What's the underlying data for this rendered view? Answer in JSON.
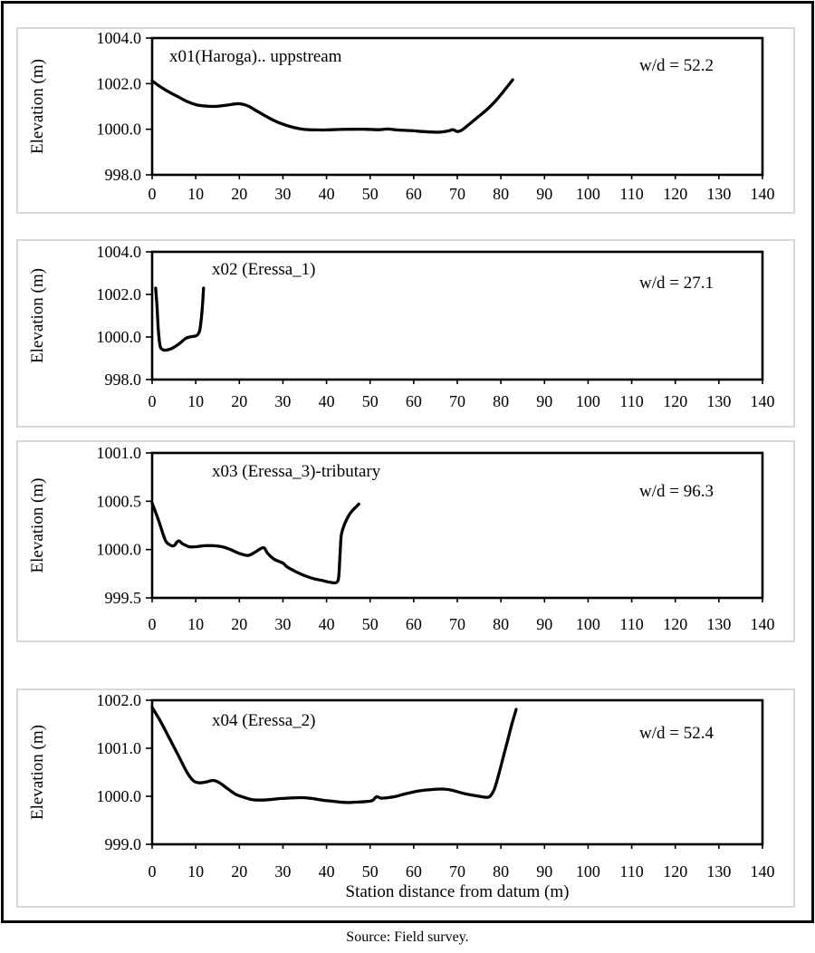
{
  "figure": {
    "caption": "Source: Field survey.",
    "bg_color": "#ffffff",
    "frame_color": "#000000",
    "panel_border_color": "#d8d8d8",
    "line_color": "#000000",
    "text_color": "#000000"
  },
  "chart_data": [
    {
      "type": "line",
      "title": "x01(Haroga).. uppstream",
      "annotation": "w/d = 52.2",
      "ylabel": "Elevation (m)",
      "xlabel": "",
      "ylim": [
        998.0,
        1004.0
      ],
      "y_tick_labels": [
        "998.0",
        "1000.0",
        "1002.0",
        "1004.0"
      ],
      "xlim": [
        0,
        140
      ],
      "x_tick_labels": [
        "0",
        "10",
        "20",
        "30",
        "40",
        "50",
        "60",
        "70",
        "80",
        "90",
        "100",
        "110",
        "120",
        "130",
        "140"
      ],
      "grid": false,
      "points": [
        [
          0,
          1002.12
        ],
        [
          2,
          1001.85
        ],
        [
          4,
          1001.62
        ],
        [
          6,
          1001.42
        ],
        [
          8,
          1001.22
        ],
        [
          10,
          1001.08
        ],
        [
          12,
          1001.02
        ],
        [
          14,
          1001.0
        ],
        [
          16,
          1001.03
        ],
        [
          18,
          1001.08
        ],
        [
          20,
          1001.12
        ],
        [
          22,
          1001.02
        ],
        [
          24,
          1000.8
        ],
        [
          26,
          1000.58
        ],
        [
          28,
          1000.38
        ],
        [
          30,
          1000.22
        ],
        [
          32,
          1000.1
        ],
        [
          34,
          1000.02
        ],
        [
          36,
          999.98
        ],
        [
          38,
          999.97
        ],
        [
          40,
          999.97
        ],
        [
          43,
          999.99
        ],
        [
          46,
          1000.0
        ],
        [
          49,
          1000.0
        ],
        [
          52,
          999.98
        ],
        [
          54,
          1000.01
        ],
        [
          56,
          999.97
        ],
        [
          58,
          999.95
        ],
        [
          60,
          999.93
        ],
        [
          62,
          999.9
        ],
        [
          64,
          999.88
        ],
        [
          66,
          999.87
        ],
        [
          68,
          999.93
        ],
        [
          69,
          999.98
        ],
        [
          70,
          999.9
        ],
        [
          71,
          999.96
        ],
        [
          72.5,
          1000.18
        ],
        [
          74.5,
          1000.5
        ],
        [
          77,
          1000.9
        ],
        [
          79.5,
          1001.4
        ],
        [
          82.7,
          1002.17
        ]
      ]
    },
    {
      "type": "line",
      "title": "x02 (Eressa_1)",
      "annotation": "w/d = 27.1",
      "ylabel": "Elevation (m)",
      "xlabel": "",
      "ylim": [
        998.0,
        1004.0
      ],
      "y_tick_labels": [
        "998.0",
        "1000.0",
        "1002.0",
        "1004.0"
      ],
      "xlim": [
        0,
        140
      ],
      "x_tick_labels": [
        "0",
        "10",
        "20",
        "30",
        "40",
        "50",
        "60",
        "70",
        "80",
        "90",
        "100",
        "110",
        "120",
        "130",
        "140"
      ],
      "grid": false,
      "points": [
        [
          0.8,
          1002.3
        ],
        [
          1.1,
          1001.5
        ],
        [
          1.4,
          1000.4
        ],
        [
          1.8,
          999.6
        ],
        [
          2.3,
          999.42
        ],
        [
          3,
          999.38
        ],
        [
          4,
          999.42
        ],
        [
          5,
          999.52
        ],
        [
          6,
          999.65
        ],
        [
          7,
          999.82
        ],
        [
          7.8,
          999.95
        ],
        [
          8.6,
          1000.0
        ],
        [
          9.5,
          1000.03
        ],
        [
          10.3,
          1000.08
        ],
        [
          10.9,
          1000.3
        ],
        [
          11.3,
          1000.9
        ],
        [
          11.6,
          1001.6
        ],
        [
          11.8,
          1002.3
        ]
      ]
    },
    {
      "type": "line",
      "title": "x03 (Eressa_3)-tributary",
      "annotation": "w/d = 96.3",
      "ylabel": "Elevation (m)",
      "xlabel": "",
      "ylim": [
        999.5,
        1001.0
      ],
      "y_tick_labels": [
        "999.5",
        "1000.0",
        "1000.5",
        "1001.0"
      ],
      "xlim": [
        0,
        140
      ],
      "x_tick_labels": [
        "0",
        "10",
        "20",
        "30",
        "40",
        "50",
        "60",
        "70",
        "80",
        "90",
        "100",
        "110",
        "120",
        "130",
        "140"
      ],
      "grid": false,
      "points": [
        [
          0,
          1000.48
        ],
        [
          1.5,
          1000.3
        ],
        [
          3,
          1000.1
        ],
        [
          4,
          1000.05
        ],
        [
          5,
          1000.04
        ],
        [
          6,
          1000.09
        ],
        [
          7,
          1000.06
        ],
        [
          8.5,
          1000.03
        ],
        [
          10,
          1000.03
        ],
        [
          12,
          1000.04
        ],
        [
          14,
          1000.04
        ],
        [
          16,
          1000.03
        ],
        [
          18,
          1000.0
        ],
        [
          20,
          999.96
        ],
        [
          22,
          999.94
        ],
        [
          23.5,
          999.97
        ],
        [
          25.5,
          1000.02
        ],
        [
          26.5,
          999.96
        ],
        [
          28,
          999.9
        ],
        [
          30,
          999.86
        ],
        [
          31,
          999.82
        ],
        [
          33,
          999.77
        ],
        [
          35,
          999.73
        ],
        [
          37,
          999.7
        ],
        [
          39,
          999.68
        ],
        [
          41,
          999.66
        ],
        [
          42.3,
          999.66
        ],
        [
          42.8,
          999.72
        ],
        [
          43.1,
          999.95
        ],
        [
          43.4,
          1000.15
        ],
        [
          44.2,
          1000.27
        ],
        [
          45.5,
          1000.38
        ],
        [
          47.4,
          1000.47
        ]
      ]
    },
    {
      "type": "line",
      "title": "x04 (Eressa_2)",
      "annotation": "w/d = 52.4",
      "ylabel": "Elevation (m)",
      "xlabel": "Station distance from datum (m)",
      "ylim": [
        999.0,
        1002.0
      ],
      "y_tick_labels": [
        "999.0",
        "1000.0",
        "1001.0",
        "1002.0"
      ],
      "xlim": [
        0,
        140
      ],
      "x_tick_labels": [
        "0",
        "10",
        "20",
        "30",
        "40",
        "50",
        "60",
        "70",
        "80",
        "90",
        "100",
        "110",
        "120",
        "130",
        "140"
      ],
      "grid": false,
      "points": [
        [
          0,
          1001.85
        ],
        [
          2,
          1001.55
        ],
        [
          4,
          1001.2
        ],
        [
          6,
          1000.85
        ],
        [
          8,
          1000.5
        ],
        [
          9.5,
          1000.32
        ],
        [
          11,
          1000.28
        ],
        [
          12.5,
          1000.3
        ],
        [
          14,
          1000.33
        ],
        [
          15.5,
          1000.28
        ],
        [
          17,
          1000.18
        ],
        [
          19,
          1000.05
        ],
        [
          21,
          999.98
        ],
        [
          23,
          999.93
        ],
        [
          25,
          999.92
        ],
        [
          27,
          999.93
        ],
        [
          29,
          999.95
        ],
        [
          31,
          999.96
        ],
        [
          33,
          999.97
        ],
        [
          35,
          999.97
        ],
        [
          37,
          999.95
        ],
        [
          39,
          999.92
        ],
        [
          41,
          999.9
        ],
        [
          43,
          999.88
        ],
        [
          45,
          999.87
        ],
        [
          47,
          999.88
        ],
        [
          49,
          999.89
        ],
        [
          50.5,
          999.91
        ],
        [
          51.5,
          999.99
        ],
        [
          52.5,
          999.96
        ],
        [
          54,
          999.97
        ],
        [
          56,
          1000.0
        ],
        [
          58,
          1000.05
        ],
        [
          61,
          1000.11
        ],
        [
          64,
          1000.14
        ],
        [
          67,
          1000.15
        ],
        [
          69,
          1000.12
        ],
        [
          71,
          1000.07
        ],
        [
          73,
          1000.03
        ],
        [
          75,
          1000.0
        ],
        [
          76.5,
          999.98
        ],
        [
          77.5,
          1000.0
        ],
        [
          78.5,
          1000.15
        ],
        [
          79.5,
          1000.45
        ],
        [
          80.5,
          1000.8
        ],
        [
          81.5,
          1001.15
        ],
        [
          82.5,
          1001.5
        ],
        [
          83.5,
          1001.81
        ]
      ]
    }
  ]
}
